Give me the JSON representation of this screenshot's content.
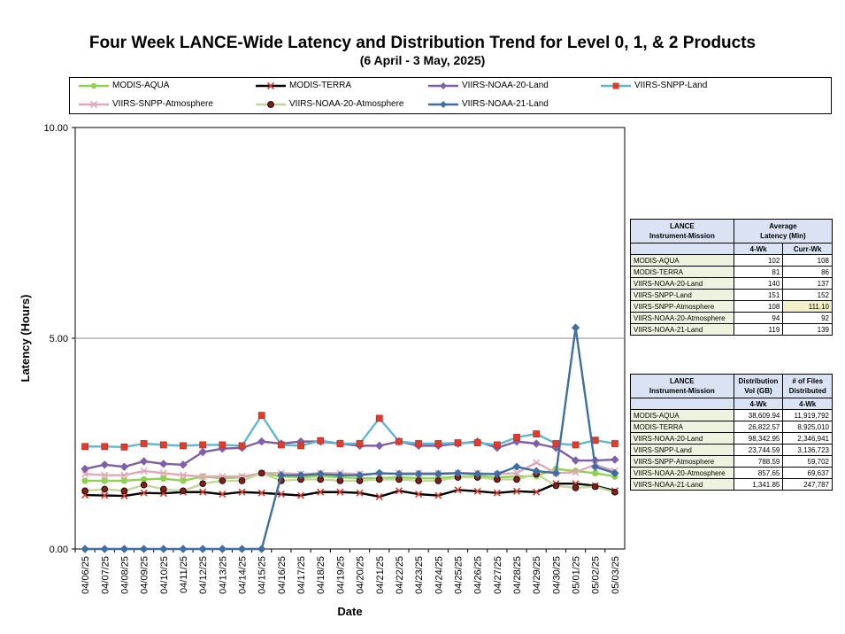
{
  "title": "Four Week LANCE-Wide Latency and Distribution Trend for Level 0, 1, & 2 Products",
  "subtitle": "(6  April   - 3  May,  2025)",
  "chart_data": {
    "type": "line",
    "xlabel": "Date",
    "ylabel": "Latency (Hours)",
    "ylim": [
      0,
      10
    ],
    "yticks": [
      "0.00",
      "5.00",
      "10.00"
    ],
    "grid": "horizontal at 5.00",
    "legend": "top",
    "categories": [
      "04/06/25",
      "04/07/25",
      "04/08/25",
      "04/09/25",
      "04/10/25",
      "04/11/25",
      "04/12/25",
      "04/13/25",
      "04/14/25",
      "04/15/25",
      "04/16/25",
      "04/17/25",
      "04/18/25",
      "04/19/25",
      "04/20/25",
      "04/21/25",
      "04/22/25",
      "04/23/25",
      "04/24/25",
      "04/25/25",
      "04/26/25",
      "04/27/25",
      "04/28/25",
      "04/29/25",
      "04/30/25",
      "05/01/25",
      "05/02/25",
      "05/03/25"
    ],
    "series": [
      {
        "name": "MODIS-AQUA",
        "color": "#92d050",
        "marker": "circle",
        "values": [
          1.62,
          1.62,
          1.62,
          1.65,
          1.67,
          1.62,
          1.72,
          1.68,
          1.7,
          1.8,
          1.72,
          1.7,
          1.73,
          1.7,
          1.68,
          1.68,
          1.7,
          1.68,
          1.68,
          1.72,
          1.73,
          1.7,
          1.72,
          1.73,
          1.9,
          1.85,
          1.8,
          1.72
        ]
      },
      {
        "name": "MODIS-TERRA",
        "color": "#000000",
        "marker": "x",
        "values": [
          1.28,
          1.27,
          1.26,
          1.33,
          1.32,
          1.35,
          1.35,
          1.3,
          1.35,
          1.33,
          1.3,
          1.27,
          1.35,
          1.35,
          1.33,
          1.24,
          1.38,
          1.3,
          1.27,
          1.4,
          1.37,
          1.33,
          1.37,
          1.35,
          1.55,
          1.55,
          1.5,
          1.38
        ]
      },
      {
        "name": "VIIRS-NOAA-20-Land",
        "color": "#7f5fa8",
        "marker": "diamond",
        "values": [
          1.9,
          2.0,
          1.95,
          2.08,
          2.02,
          2.0,
          2.3,
          2.38,
          2.4,
          2.55,
          2.5,
          2.55,
          2.55,
          2.5,
          2.45,
          2.45,
          2.55,
          2.45,
          2.45,
          2.5,
          2.55,
          2.4,
          2.55,
          2.5,
          2.4,
          2.1,
          2.1,
          2.12
        ]
      },
      {
        "name": "VIIRS-SNPP-Land",
        "color": "#5bb7d5",
        "marker": "square",
        "values": [
          2.43,
          2.43,
          2.42,
          2.5,
          2.47,
          2.45,
          2.47,
          2.47,
          2.45,
          3.17,
          2.47,
          2.45,
          2.57,
          2.5,
          2.5,
          3.1,
          2.55,
          2.5,
          2.5,
          2.52,
          2.52,
          2.47,
          2.65,
          2.73,
          2.5,
          2.47,
          2.58,
          2.5
        ]
      },
      {
        "name": "VIIRS-SNPP-Atmosphere",
        "color": "#e0a8b8",
        "marker": "x",
        "values": [
          1.78,
          1.75,
          1.75,
          1.85,
          1.8,
          1.75,
          1.72,
          1.72,
          1.72,
          1.8,
          1.8,
          1.78,
          1.8,
          1.8,
          1.78,
          1.78,
          1.8,
          1.8,
          1.8,
          1.8,
          1.8,
          1.78,
          1.8,
          2.05,
          1.8,
          1.82,
          2.0,
          1.85
        ]
      },
      {
        "name": "VIIRS-NOAA-20-Atmosphere",
        "color": "#c4d79b",
        "marker": "dotcircle",
        "values": [
          1.38,
          1.42,
          1.38,
          1.52,
          1.42,
          1.38,
          1.55,
          1.62,
          1.62,
          1.8,
          1.62,
          1.65,
          1.65,
          1.62,
          1.62,
          1.65,
          1.65,
          1.62,
          1.62,
          1.7,
          1.7,
          1.65,
          1.65,
          1.78,
          1.5,
          1.45,
          1.48,
          1.35
        ]
      },
      {
        "name": "VIIRS-NOAA-21-Land",
        "color": "#3f6ea3",
        "marker": "diamond",
        "values": [
          0,
          0,
          0,
          0,
          0,
          0,
          0,
          0,
          0,
          0,
          1.75,
          1.75,
          1.78,
          1.75,
          1.75,
          1.8,
          1.78,
          1.78,
          1.78,
          1.8,
          1.78,
          1.78,
          1.95,
          1.85,
          1.8,
          5.25,
          1.95,
          1.8
        ]
      }
    ]
  },
  "latency_table": {
    "header_col1": "LANCE\nInstrument-Mission",
    "header_col2": "Average\nLatency (Min)",
    "sub_4wk": "4-Wk",
    "sub_curr": "Curr-Wk",
    "rows": [
      {
        "label": "MODIS-AQUA",
        "wk4": "102",
        "curr": "108"
      },
      {
        "label": "MODIS-TERRA",
        "wk4": "81",
        "curr": "86"
      },
      {
        "label": "VIIRS-NOAA-20-Land",
        "wk4": "140",
        "curr": "137"
      },
      {
        "label": "VIIRS-SNPP-Land",
        "wk4": "151",
        "curr": "152"
      },
      {
        "label": "VIIRS-SNPP-Atmosphere",
        "wk4": "108",
        "curr": "111.10"
      },
      {
        "label": "VIIRS-NOAA-20-Atmosphere",
        "wk4": "94",
        "curr": "92"
      },
      {
        "label": "VIIRS-NOAA-21-Land",
        "wk4": "119",
        "curr": "139"
      }
    ]
  },
  "distribution_table": {
    "header_col1": "LANCE\nInstrument-Mission",
    "header_col2": "Distribution\nVol (GB)",
    "header_col3": "# of Files\nDistributed",
    "sub_vol": "4-Wk",
    "sub_files": "4-Wk",
    "rows": [
      {
        "label": "MODIS-AQUA",
        "vol": "38,609.94",
        "files": "11,919,792"
      },
      {
        "label": "MODIS-TERRA",
        "vol": "26,822.57",
        "files": "8,925,010"
      },
      {
        "label": "VIIRS-NOAA-20-Land",
        "vol": "98,342.95",
        "files": "2,346,941"
      },
      {
        "label": "VIIRS-SNPP-Land",
        "vol": "23,744.59",
        "files": "3,136,723"
      },
      {
        "label": "VIIRS-SNPP-Atmosphere",
        "vol": "788.59",
        "files": "59,702"
      },
      {
        "label": "VIIRS-NOAA-20-Atmosphere",
        "vol": "857.65",
        "files": "69,637"
      },
      {
        "label": "VIIRS-NOAA-21-Land",
        "vol": "1,341.85",
        "files": "247,787"
      }
    ]
  }
}
